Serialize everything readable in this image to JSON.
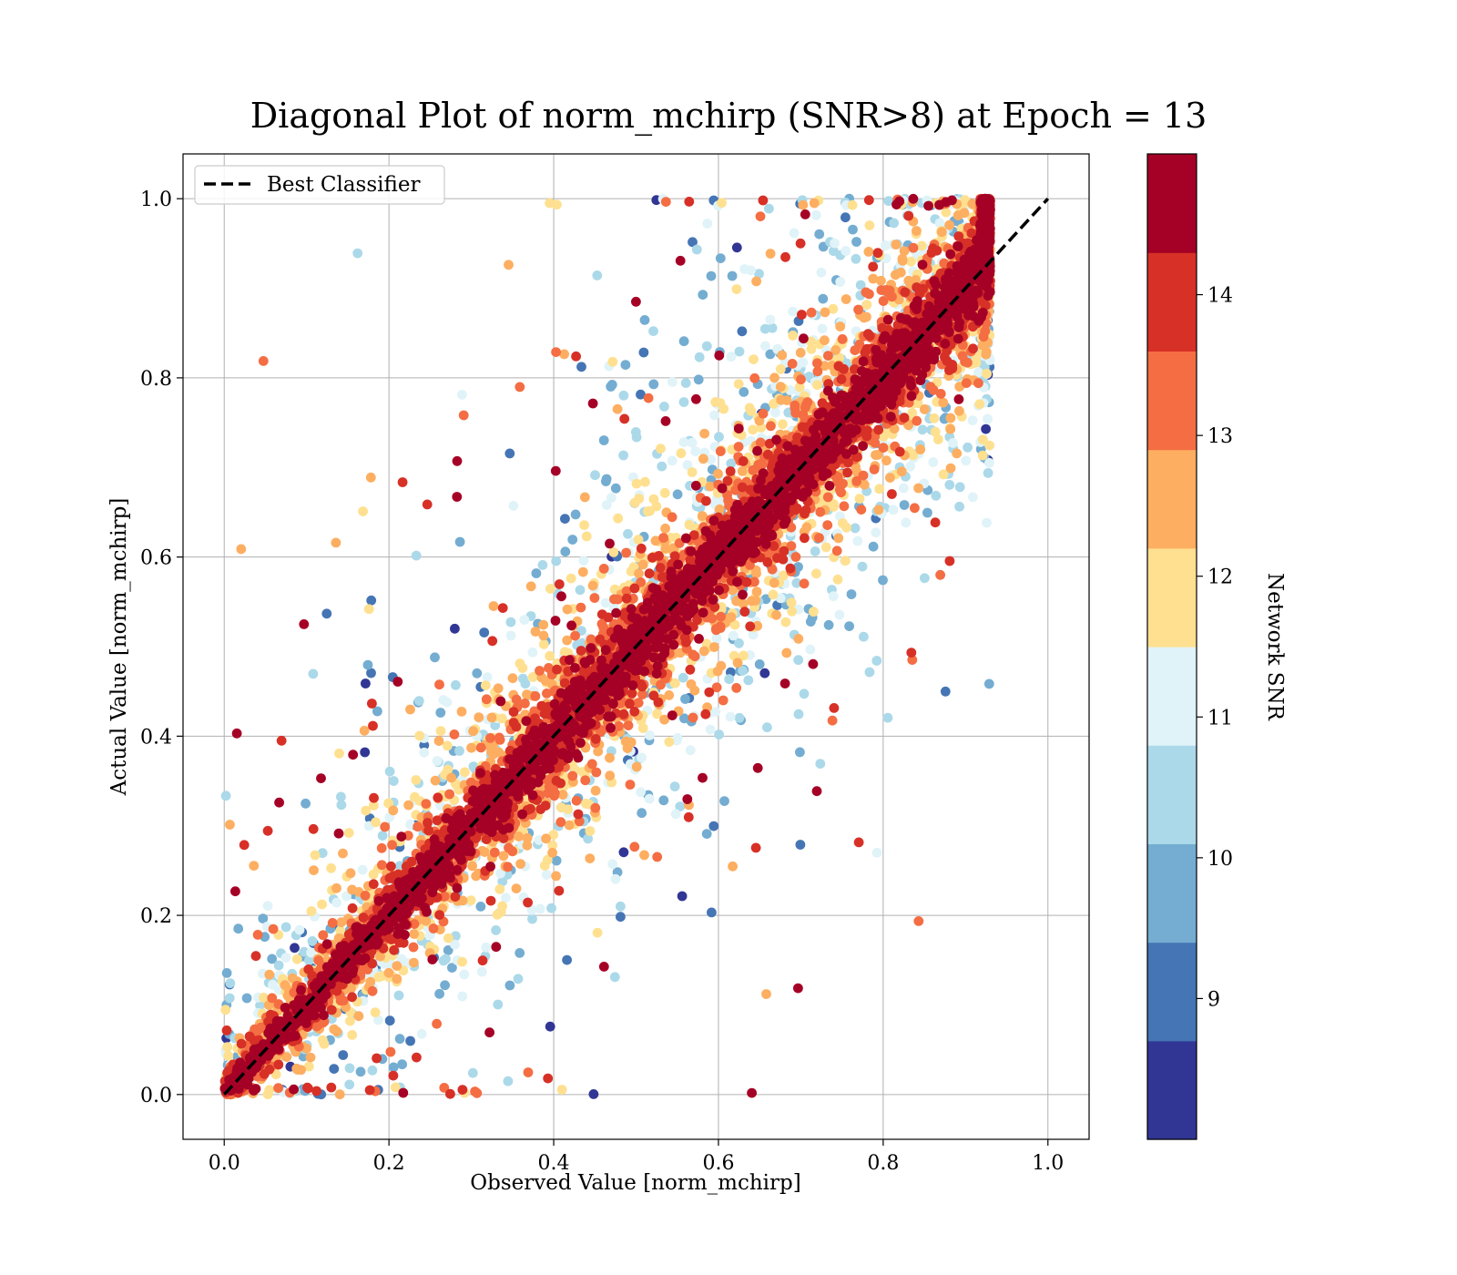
{
  "chart_data": {
    "type": "scatter",
    "title": "Diagonal Plot of norm_mchirp (SNR>8) at Epoch = 13",
    "xlabel": "Observed Value [norm_mchirp]",
    "ylabel": "Actual Value [norm_mchirp]",
    "xlim": [
      -0.05,
      1.05
    ],
    "ylim": [
      -0.05,
      1.05
    ],
    "x_ticks": [
      "0.0",
      "0.2",
      "0.4",
      "0.6",
      "0.8",
      "1.0"
    ],
    "y_ticks": [
      "0.0",
      "0.2",
      "0.4",
      "0.6",
      "0.8",
      "1.0"
    ],
    "grid": true,
    "legend": {
      "placement": "top-left",
      "entries": [
        "Best Classifier"
      ]
    },
    "reference_line": {
      "name": "Best Classifier",
      "x": [
        0,
        1
      ],
      "y": [
        0,
        1
      ],
      "style": "dashed",
      "color": "#000000"
    },
    "colorbar": {
      "label": "Network SNR",
      "range": [
        8,
        15
      ],
      "ticks": [
        "9",
        "10",
        "11",
        "12",
        "13",
        "14"
      ],
      "colors": [
        "#313695",
        "#4575b4",
        "#74add1",
        "#abd9e9",
        "#e0f3f8",
        "#ffffbf",
        "#fee090",
        "#fdae61",
        "#f46d43",
        "#d73027",
        "#a50026"
      ]
    },
    "point_cloud": {
      "points_shown": 9000,
      "x_range_of_points": [
        0.0,
        0.93
      ],
      "y_range_of_points": [
        0.0,
        1.0
      ],
      "dominant_color": "#a50026"
    }
  }
}
